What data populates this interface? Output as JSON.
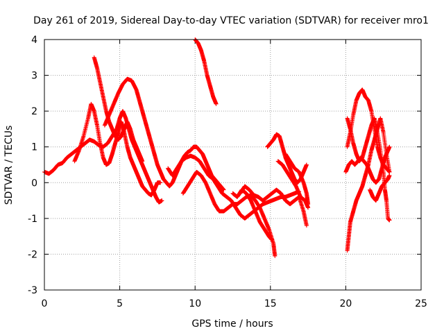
{
  "chart_data": {
    "type": "scatter",
    "title": "Day 261 of 2019, Sidereal Day-to-day VTEC variation (SDTVAR) for receiver mro1",
    "xlabel": "GPS time / hours",
    "ylabel": "SDTVAR / TECUs",
    "xlim": [
      0,
      25
    ],
    "ylim": [
      -3,
      4
    ],
    "grid": true,
    "marker": "+",
    "color": "#ff0000",
    "x_ticks": [
      0,
      5,
      10,
      15,
      20,
      25
    ],
    "x_tick_labels": [
      "0",
      "5",
      "10",
      "15",
      "20",
      "25"
    ],
    "y_ticks": [
      -3,
      -2,
      -1,
      0,
      1,
      2,
      3,
      4
    ],
    "y_tick_labels": [
      "-3",
      "-2",
      "-1",
      "0",
      "1",
      "2",
      "3",
      "4"
    ],
    "series": [
      {
        "name": "s1",
        "points": [
          [
            0.0,
            0.3
          ],
          [
            0.3,
            0.25
          ],
          [
            0.6,
            0.35
          ],
          [
            0.9,
            0.5
          ],
          [
            1.2,
            0.55
          ],
          [
            1.5,
            0.7
          ],
          [
            1.8,
            0.8
          ],
          [
            2.1,
            0.9
          ],
          [
            2.4,
            1.0
          ],
          [
            2.7,
            1.1
          ],
          [
            3.0,
            1.2
          ],
          [
            3.3,
            1.15
          ],
          [
            3.6,
            1.05
          ],
          [
            3.9,
            1.0
          ],
          [
            4.2,
            1.1
          ],
          [
            4.5,
            1.3
          ],
          [
            4.8,
            1.5
          ],
          [
            5.0,
            1.8
          ],
          [
            5.2,
            2.0
          ],
          [
            5.4,
            1.8
          ],
          [
            5.6,
            1.5
          ],
          [
            5.8,
            1.2
          ],
          [
            6.0,
            1.0
          ],
          [
            6.2,
            0.8
          ],
          [
            6.4,
            0.6
          ],
          [
            6.6,
            0.4
          ],
          [
            6.8,
            0.2
          ],
          [
            7.0,
            0.0
          ],
          [
            7.2,
            -0.2
          ],
          [
            7.4,
            -0.4
          ],
          [
            7.6,
            -0.55
          ],
          [
            7.8,
            -0.5
          ]
        ]
      },
      {
        "name": "s2",
        "points": [
          [
            2.0,
            0.6
          ],
          [
            2.3,
            0.9
          ],
          [
            2.6,
            1.3
          ],
          [
            2.9,
            1.8
          ],
          [
            3.1,
            2.2
          ],
          [
            3.3,
            2.0
          ],
          [
            3.5,
            1.6
          ],
          [
            3.7,
            1.1
          ],
          [
            3.9,
            0.7
          ],
          [
            4.1,
            0.5
          ],
          [
            4.3,
            0.55
          ],
          [
            4.5,
            0.8
          ],
          [
            4.7,
            1.1
          ],
          [
            4.9,
            1.4
          ],
          [
            5.1,
            1.7
          ],
          [
            5.3,
            1.4
          ],
          [
            5.5,
            1.0
          ],
          [
            5.7,
            0.7
          ],
          [
            5.9,
            0.5
          ],
          [
            6.1,
            0.3
          ],
          [
            6.3,
            0.1
          ],
          [
            6.5,
            -0.1
          ],
          [
            6.7,
            -0.2
          ],
          [
            6.9,
            -0.3
          ],
          [
            7.1,
            -0.35
          ],
          [
            7.3,
            -0.2
          ],
          [
            7.5,
            0.0
          ],
          [
            7.7,
            0.0
          ]
        ]
      },
      {
        "name": "s3",
        "points": [
          [
            3.3,
            3.5
          ],
          [
            3.5,
            3.2
          ],
          [
            3.7,
            2.8
          ],
          [
            3.9,
            2.4
          ],
          [
            4.1,
            2.0
          ],
          [
            4.3,
            1.7
          ],
          [
            4.5,
            1.5
          ],
          [
            4.7,
            1.3
          ],
          [
            4.9,
            1.2
          ],
          [
            5.1,
            1.3
          ],
          [
            5.3,
            1.5
          ],
          [
            5.5,
            1.7
          ],
          [
            5.7,
            1.5
          ],
          [
            5.9,
            1.2
          ],
          [
            6.1,
            1.0
          ],
          [
            6.3,
            0.8
          ],
          [
            6.5,
            0.6
          ]
        ]
      },
      {
        "name": "s4",
        "points": [
          [
            4.0,
            1.6
          ],
          [
            4.3,
            1.9
          ],
          [
            4.6,
            2.2
          ],
          [
            4.9,
            2.5
          ],
          [
            5.2,
            2.75
          ],
          [
            5.5,
            2.9
          ],
          [
            5.8,
            2.85
          ],
          [
            6.1,
            2.6
          ],
          [
            6.3,
            2.3
          ],
          [
            6.5,
            2.0
          ],
          [
            6.7,
            1.7
          ],
          [
            6.9,
            1.4
          ],
          [
            7.1,
            1.1
          ],
          [
            7.3,
            0.8
          ],
          [
            7.5,
            0.5
          ],
          [
            7.7,
            0.3
          ],
          [
            7.9,
            0.1
          ],
          [
            8.1,
            0.0
          ],
          [
            8.3,
            -0.1
          ],
          [
            8.5,
            0.0
          ],
          [
            8.7,
            0.2
          ],
          [
            8.9,
            0.4
          ],
          [
            9.1,
            0.6
          ],
          [
            9.3,
            0.75
          ],
          [
            9.5,
            0.85
          ],
          [
            9.7,
            0.9
          ],
          [
            9.9,
            1.0
          ],
          [
            10.1,
            1.0
          ],
          [
            10.3,
            0.9
          ],
          [
            10.5,
            0.8
          ],
          [
            10.7,
            0.6
          ],
          [
            10.9,
            0.4
          ],
          [
            11.1,
            0.2
          ],
          [
            11.3,
            0.1
          ],
          [
            11.5,
            0.0
          ],
          [
            11.7,
            -0.1
          ],
          [
            11.9,
            -0.2
          ]
        ]
      },
      {
        "name": "s5",
        "points": [
          [
            8.2,
            0.4
          ],
          [
            8.5,
            0.2
          ],
          [
            8.8,
            0.4
          ],
          [
            9.1,
            0.6
          ],
          [
            9.4,
            0.7
          ],
          [
            9.7,
            0.75
          ],
          [
            10.0,
            0.7
          ],
          [
            10.3,
            0.6
          ],
          [
            10.6,
            0.4
          ],
          [
            10.9,
            0.2
          ],
          [
            11.2,
            0.1
          ],
          [
            11.5,
            -0.1
          ],
          [
            11.8,
            -0.3
          ],
          [
            12.1,
            -0.4
          ],
          [
            12.4,
            -0.5
          ],
          [
            12.7,
            -0.7
          ],
          [
            13.0,
            -0.9
          ],
          [
            13.3,
            -1.0
          ],
          [
            13.6,
            -0.9
          ],
          [
            13.9,
            -0.8
          ],
          [
            14.2,
            -0.7
          ],
          [
            14.5,
            -0.6
          ],
          [
            14.8,
            -0.55
          ],
          [
            15.1,
            -0.5
          ],
          [
            15.4,
            -0.45
          ],
          [
            15.7,
            -0.4
          ],
          [
            16.0,
            -0.4
          ],
          [
            16.3,
            -0.35
          ],
          [
            16.6,
            -0.3
          ],
          [
            16.9,
            -0.25
          ]
        ]
      },
      {
        "name": "s6",
        "points": [
          [
            10.0,
            4.0
          ],
          [
            10.2,
            3.9
          ],
          [
            10.4,
            3.7
          ],
          [
            10.6,
            3.4
          ],
          [
            10.8,
            3.0
          ],
          [
            11.0,
            2.7
          ],
          [
            11.2,
            2.4
          ],
          [
            11.4,
            2.2
          ]
        ]
      },
      {
        "name": "s7",
        "points": [
          [
            9.2,
            -0.3
          ],
          [
            9.5,
            -0.1
          ],
          [
            9.8,
            0.1
          ],
          [
            10.1,
            0.3
          ],
          [
            10.4,
            0.2
          ],
          [
            10.7,
            0.0
          ],
          [
            11.0,
            -0.3
          ],
          [
            11.3,
            -0.6
          ],
          [
            11.6,
            -0.8
          ],
          [
            11.9,
            -0.8
          ],
          [
            12.2,
            -0.7
          ],
          [
            12.5,
            -0.6
          ],
          [
            12.8,
            -0.6
          ],
          [
            13.1,
            -0.5
          ],
          [
            13.4,
            -0.4
          ],
          [
            13.7,
            -0.35
          ],
          [
            14.0,
            -0.5
          ],
          [
            14.3,
            -0.7
          ],
          [
            14.6,
            -1.0
          ],
          [
            14.9,
            -1.3
          ],
          [
            15.2,
            -1.7
          ],
          [
            15.3,
            -2.05
          ]
        ]
      },
      {
        "name": "s8",
        "points": [
          [
            12.5,
            -0.3
          ],
          [
            12.8,
            -0.4
          ],
          [
            13.1,
            -0.2
          ],
          [
            13.4,
            -0.3
          ],
          [
            13.7,
            -0.5
          ],
          [
            14.0,
            -0.8
          ],
          [
            14.3,
            -1.1
          ],
          [
            14.6,
            -1.3
          ],
          [
            14.9,
            -1.5
          ],
          [
            15.1,
            -1.6
          ]
        ]
      },
      {
        "name": "s9",
        "points": [
          [
            13.0,
            -0.3
          ],
          [
            13.3,
            -0.1
          ],
          [
            13.6,
            -0.2
          ],
          [
            13.9,
            -0.35
          ],
          [
            14.2,
            -0.4
          ],
          [
            14.5,
            -0.5
          ],
          [
            14.8,
            -0.4
          ],
          [
            15.1,
            -0.3
          ],
          [
            15.4,
            -0.2
          ],
          [
            15.7,
            -0.3
          ],
          [
            16.0,
            -0.5
          ],
          [
            16.3,
            -0.6
          ],
          [
            16.6,
            -0.5
          ],
          [
            16.9,
            -0.4
          ],
          [
            17.2,
            -0.8
          ],
          [
            17.4,
            -1.2
          ]
        ]
      },
      {
        "name": "s10",
        "points": [
          [
            14.8,
            1.0
          ],
          [
            15.0,
            1.1
          ],
          [
            15.2,
            1.2
          ],
          [
            15.4,
            1.35
          ],
          [
            15.6,
            1.3
          ],
          [
            15.8,
            1.0
          ],
          [
            16.0,
            0.7
          ],
          [
            16.2,
            0.5
          ],
          [
            16.4,
            0.3
          ],
          [
            16.6,
            0.1
          ],
          [
            16.8,
            0.0
          ],
          [
            17.0,
            0.1
          ],
          [
            17.2,
            0.3
          ],
          [
            17.4,
            0.5
          ]
        ]
      },
      {
        "name": "s11",
        "points": [
          [
            15.5,
            0.6
          ],
          [
            15.8,
            0.5
          ],
          [
            16.1,
            0.3
          ],
          [
            16.4,
            0.1
          ],
          [
            16.7,
            -0.1
          ],
          [
            17.0,
            -0.4
          ],
          [
            17.3,
            -0.5
          ],
          [
            17.5,
            -0.7
          ]
        ]
      },
      {
        "name": "s12",
        "points": [
          [
            16.0,
            0.8
          ],
          [
            16.3,
            0.6
          ],
          [
            16.6,
            0.4
          ],
          [
            16.9,
            0.3
          ],
          [
            17.2,
            0.0
          ],
          [
            17.4,
            -0.3
          ],
          [
            17.5,
            -0.6
          ]
        ]
      },
      {
        "name": "s13",
        "points": [
          [
            20.1,
            1.0
          ],
          [
            20.3,
            1.4
          ],
          [
            20.5,
            1.9
          ],
          [
            20.7,
            2.3
          ],
          [
            20.9,
            2.5
          ],
          [
            21.1,
            2.6
          ],
          [
            21.3,
            2.4
          ],
          [
            21.5,
            2.3
          ],
          [
            21.7,
            2.0
          ],
          [
            21.9,
            1.5
          ],
          [
            22.1,
            1.0
          ],
          [
            22.3,
            0.7
          ],
          [
            22.5,
            0.5
          ],
          [
            22.7,
            0.4
          ],
          [
            22.9,
            0.3
          ]
        ]
      },
      {
        "name": "s14",
        "points": [
          [
            20.0,
            0.3
          ],
          [
            20.2,
            0.5
          ],
          [
            20.4,
            0.6
          ],
          [
            20.6,
            0.5
          ],
          [
            20.8,
            0.6
          ],
          [
            21.0,
            0.7
          ],
          [
            21.2,
            0.6
          ],
          [
            21.4,
            0.5
          ],
          [
            21.6,
            0.3
          ],
          [
            21.8,
            0.1
          ],
          [
            22.0,
            0.0
          ],
          [
            22.2,
            0.1
          ],
          [
            22.4,
            0.4
          ],
          [
            22.6,
            0.7
          ],
          [
            22.8,
            0.9
          ],
          [
            22.9,
            1.0
          ]
        ]
      },
      {
        "name": "s15",
        "points": [
          [
            20.1,
            -1.9
          ],
          [
            20.2,
            -1.5
          ],
          [
            20.3,
            -1.1
          ],
          [
            20.5,
            -0.8
          ],
          [
            20.7,
            -0.5
          ],
          [
            20.9,
            -0.3
          ],
          [
            21.1,
            -0.1
          ],
          [
            21.3,
            0.2
          ],
          [
            21.5,
            0.5
          ],
          [
            21.7,
            0.9
          ],
          [
            21.9,
            1.2
          ],
          [
            22.1,
            1.5
          ],
          [
            22.3,
            1.8
          ],
          [
            22.5,
            1.4
          ],
          [
            22.7,
            0.8
          ],
          [
            22.9,
            0.3
          ]
        ]
      },
      {
        "name": "s16",
        "points": [
          [
            20.1,
            1.8
          ],
          [
            20.3,
            1.5
          ],
          [
            20.5,
            1.1
          ],
          [
            20.7,
            0.8
          ],
          [
            20.9,
            0.6
          ],
          [
            21.1,
            0.7
          ],
          [
            21.3,
            1.0
          ],
          [
            21.5,
            1.3
          ],
          [
            21.7,
            1.6
          ],
          [
            21.9,
            1.8
          ],
          [
            22.1,
            1.4
          ],
          [
            22.3,
            0.9
          ],
          [
            22.5,
            0.3
          ],
          [
            22.6,
            -0.2
          ],
          [
            22.7,
            -0.5
          ],
          [
            22.8,
            -1.0
          ],
          [
            22.9,
            -1.05
          ]
        ]
      },
      {
        "name": "s17",
        "points": [
          [
            21.6,
            -0.2
          ],
          [
            21.8,
            -0.4
          ],
          [
            22.0,
            -0.5
          ],
          [
            22.2,
            -0.3
          ],
          [
            22.4,
            -0.1
          ],
          [
            22.6,
            0.0
          ],
          [
            22.8,
            0.1
          ],
          [
            22.9,
            0.2
          ]
        ]
      }
    ]
  }
}
